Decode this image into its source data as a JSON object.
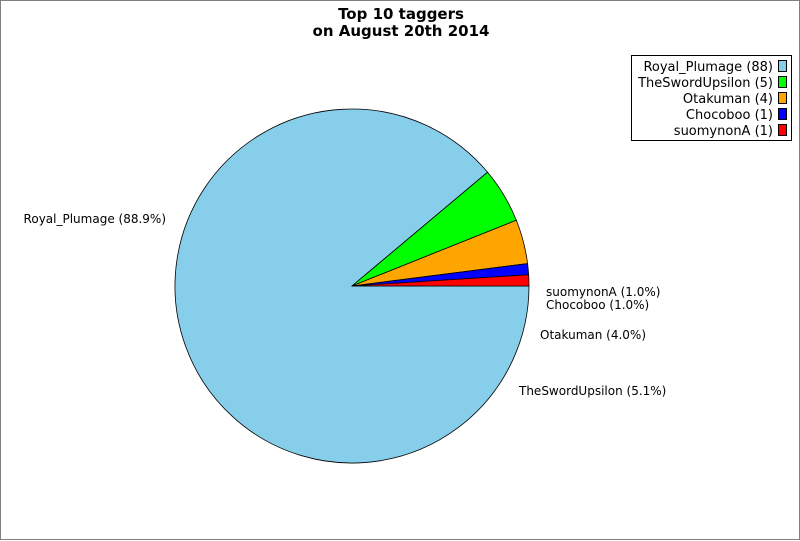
{
  "chart_data": {
    "type": "pie",
    "title": [
      "Top 10 taggers",
      "on August 20th 2014"
    ],
    "series": [
      {
        "name": "Royal_Plumage",
        "count": 88,
        "percent": 88.9,
        "legend_label": "Royal_Plumage (88)",
        "slice_label": "Royal_Plumage (88.9%)",
        "color": "#87ceeb"
      },
      {
        "name": "TheSwordUpsilon",
        "count": 5,
        "percent": 5.1,
        "legend_label": "TheSwordUpsilon (5)",
        "slice_label": "TheSwordUpsilon (5.1%)",
        "color": "#00ff00"
      },
      {
        "name": "Otakuman",
        "count": 4,
        "percent": 4.0,
        "legend_label": "Otakuman (4)",
        "slice_label": "Otakuman (4.0%)",
        "color": "#ffa500"
      },
      {
        "name": "Chocoboo",
        "count": 1,
        "percent": 1.0,
        "legend_label": "Chocoboo (1)",
        "slice_label": "Chocoboo (1.0%)",
        "color": "#0000ff"
      },
      {
        "name": "suomynonA",
        "count": 1,
        "percent": 1.0,
        "legend_label": "suomynonA (1)",
        "slice_label": "suomynonA (1.0%)",
        "color": "#ff0000"
      }
    ],
    "legend_position": "top-right"
  }
}
